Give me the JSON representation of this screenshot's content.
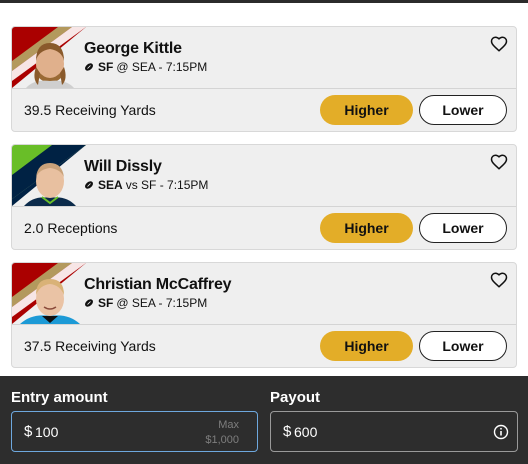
{
  "colors": {
    "higher": "#e3ad28",
    "card_bg": "#efefef",
    "footer_bg": "#2d2d2d",
    "active_border": "#6ea8de"
  },
  "cards": [
    {
      "player": "George Kittle",
      "team": "SF",
      "matchup": "@ SEA - 7:15PM",
      "stat": "39.5 Receiving Yards",
      "higher_label": "Higher",
      "lower_label": "Lower",
      "team_colors": [
        "#aa0000",
        "#b3995d"
      ]
    },
    {
      "player": "Will Dissly",
      "team": "SEA",
      "matchup": "vs SF - 7:15PM",
      "stat": "2.0 Receptions",
      "higher_label": "Higher",
      "lower_label": "Lower",
      "team_colors": [
        "#69be28",
        "#002244"
      ]
    },
    {
      "player": "Christian McCaffrey",
      "team": "SF",
      "matchup": "@ SEA - 7:15PM",
      "stat": "37.5 Receiving Yards",
      "higher_label": "Higher",
      "lower_label": "Lower",
      "team_colors": [
        "#aa0000",
        "#b3995d"
      ]
    }
  ],
  "entry": {
    "label": "Entry amount",
    "currency": "$",
    "value": "100",
    "max_label": "Max",
    "max_value": "$1,000"
  },
  "payout": {
    "label": "Payout",
    "currency": "$",
    "value": "600",
    "icon": "info-icon"
  }
}
